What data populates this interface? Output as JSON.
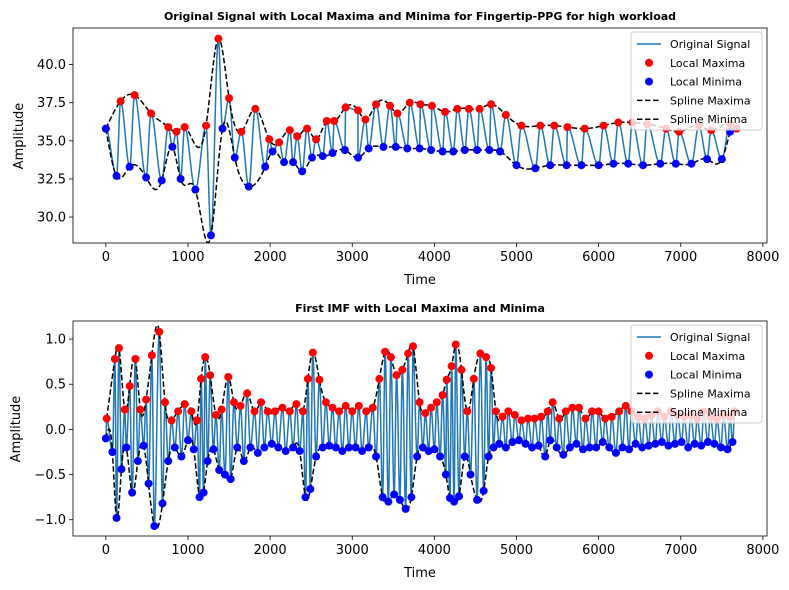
{
  "colors": {
    "signal": "#1f77b4",
    "maxima": "#ff0000",
    "minima": "#0000ff",
    "spline": "#000000"
  },
  "chart_data": [
    {
      "type": "line",
      "title": "Original Signal with Local Maxima and Minima for Fingertip-PPG for high workload",
      "xlabel": "Time",
      "ylabel": "Amplitude",
      "xlim": [
        -400,
        8050
      ],
      "ylim": [
        28.3,
        42.4
      ],
      "xticks": [
        0,
        1000,
        2000,
        3000,
        4000,
        5000,
        6000,
        7000,
        8000
      ],
      "xtick_labels": [
        "0",
        "1000",
        "2000",
        "3000",
        "4000",
        "5000",
        "6000",
        "7000",
        "8000"
      ],
      "yticks": [
        30.0,
        32.5,
        35.0,
        37.5,
        40.0
      ],
      "ytick_labels": [
        "30.0",
        "32.5",
        "35.0",
        "37.5",
        "40.0"
      ],
      "legend": {
        "position": "upper right",
        "entries": [
          "Original Signal",
          "Local Maxima",
          "Local Minima",
          "Spline Maxima",
          "Spline Minima"
        ]
      },
      "maxima": {
        "x": [
          0,
          180,
          350,
          550,
          760,
          860,
          960,
          1220,
          1370,
          1500,
          1650,
          1820,
          1990,
          2110,
          2240,
          2330,
          2450,
          2560,
          2690,
          2780,
          2920,
          3070,
          3160,
          3290,
          3460,
          3550,
          3700,
          3830,
          3970,
          4130,
          4280,
          4420,
          4550,
          4690,
          4870,
          5060,
          5290,
          5460,
          5620,
          5830,
          6060,
          6240,
          6410,
          6590,
          6820,
          6980,
          7220,
          7370,
          7600,
          7680
        ],
        "y": [
          35.8,
          37.6,
          38.0,
          36.8,
          35.9,
          35.6,
          35.9,
          36.0,
          41.7,
          37.8,
          35.6,
          37.1,
          35.1,
          34.9,
          35.7,
          35.3,
          35.8,
          35.1,
          36.3,
          36.3,
          37.2,
          37.0,
          36.4,
          37.4,
          37.3,
          36.8,
          37.5,
          37.4,
          37.3,
          36.9,
          37.1,
          37.1,
          37.1,
          37.4,
          36.7,
          36.0,
          36.0,
          36.0,
          35.9,
          35.8,
          36.0,
          36.2,
          36.2,
          36.1,
          35.8,
          35.6,
          36.0,
          35.7,
          36.1,
          35.8
        ]
      },
      "minima": {
        "x": [
          0,
          130,
          290,
          490,
          680,
          810,
          910,
          1090,
          1280,
          1420,
          1570,
          1740,
          1940,
          2030,
          2170,
          2280,
          2390,
          2510,
          2640,
          2760,
          2910,
          3070,
          3200,
          3380,
          3530,
          3670,
          3820,
          3960,
          4100,
          4230,
          4370,
          4520,
          4670,
          4800,
          5000,
          5230,
          5410,
          5610,
          5790,
          6000,
          6180,
          6360,
          6540,
          6750,
          6940,
          7130,
          7320,
          7500,
          7600
        ],
        "y": [
          35.8,
          32.7,
          33.3,
          32.6,
          32.4,
          34.6,
          32.5,
          31.8,
          28.8,
          35.8,
          33.9,
          32.0,
          33.3,
          34.3,
          33.6,
          33.6,
          33.0,
          33.9,
          34.0,
          34.2,
          34.4,
          33.9,
          34.5,
          34.6,
          34.6,
          34.5,
          34.5,
          34.4,
          34.3,
          34.3,
          34.4,
          34.4,
          34.4,
          34.3,
          33.4,
          33.2,
          33.4,
          33.4,
          33.4,
          33.4,
          33.5,
          33.5,
          33.4,
          33.5,
          33.5,
          33.5,
          33.8,
          33.8,
          35.6
        ]
      }
    },
    {
      "type": "line",
      "title": "First IMF with Local Maxima and Minima",
      "xlabel": "Time",
      "ylabel": "Amplitude",
      "xlim": [
        -400,
        8050
      ],
      "ylim": [
        -1.18,
        1.2
      ],
      "xticks": [
        0,
        1000,
        2000,
        3000,
        4000,
        5000,
        6000,
        7000,
        8000
      ],
      "xtick_labels": [
        "0",
        "1000",
        "2000",
        "3000",
        "4000",
        "5000",
        "6000",
        "7000",
        "8000"
      ],
      "yticks": [
        -1.0,
        -0.5,
        0.0,
        0.5,
        1.0
      ],
      "ytick_labels": [
        "−1.0",
        "−0.5",
        "0.0",
        "0.5",
        "1.0"
      ],
      "legend": {
        "position": "upper right",
        "entries": [
          "Original Signal",
          "Local Maxima",
          "Local Minima",
          "Spline Maxima",
          "Spline Minima"
        ]
      },
      "maxima": {
        "x": [
          10,
          110,
          160,
          230,
          290,
          360,
          420,
          490,
          560,
          650,
          720,
          800,
          880,
          960,
          1040,
          1110,
          1160,
          1210,
          1270,
          1340,
          1410,
          1490,
          1560,
          1640,
          1720,
          1810,
          1890,
          1970,
          2060,
          2150,
          2240,
          2320,
          2400,
          2460,
          2520,
          2600,
          2680,
          2760,
          2840,
          2920,
          3000,
          3080,
          3170,
          3250,
          3330,
          3400,
          3470,
          3540,
          3610,
          3680,
          3740,
          3820,
          3890,
          3960,
          4030,
          4100,
          4150,
          4210,
          4260,
          4330,
          4400,
          4480,
          4560,
          4630,
          4690,
          4750,
          4830,
          4900,
          4980,
          5060,
          5140,
          5220,
          5300,
          5380,
          5440,
          5520,
          5600,
          5680,
          5760,
          5840,
          5920,
          6000,
          6080,
          6160,
          6250,
          6330,
          6400,
          6480,
          6560,
          6640,
          6720,
          6800,
          6880,
          6960,
          7040,
          7120,
          7200,
          7280,
          7360,
          7440,
          7520,
          7600,
          7660
        ],
        "y": [
          0.12,
          0.78,
          0.9,
          0.22,
          0.48,
          0.78,
          0.22,
          0.33,
          0.82,
          1.08,
          0.3,
          0.1,
          0.2,
          0.28,
          0.2,
          0.1,
          0.56,
          0.8,
          0.6,
          0.16,
          0.22,
          0.58,
          0.3,
          0.26,
          0.4,
          0.2,
          0.3,
          0.2,
          0.2,
          0.24,
          0.2,
          0.28,
          0.2,
          0.56,
          0.85,
          0.55,
          0.3,
          0.24,
          0.2,
          0.26,
          0.2,
          0.26,
          0.2,
          0.24,
          0.56,
          0.86,
          0.8,
          0.6,
          0.66,
          0.84,
          0.92,
          0.3,
          0.18,
          0.24,
          0.3,
          0.38,
          0.55,
          0.7,
          0.94,
          0.66,
          0.2,
          0.56,
          0.84,
          0.8,
          0.68,
          0.2,
          0.14,
          0.2,
          0.16,
          0.1,
          0.12,
          0.12,
          0.14,
          0.2,
          0.3,
          0.12,
          0.2,
          0.24,
          0.24,
          0.12,
          0.2,
          0.2,
          0.12,
          0.14,
          0.2,
          0.26,
          0.2,
          0.14,
          0.12,
          0.16,
          0.2,
          0.14,
          0.2,
          0.16,
          0.14,
          0.16,
          0.12,
          0.2,
          0.14,
          0.12,
          0.16,
          0.14,
          0.2
        ]
      },
      "minima": {
        "x": [
          0,
          80,
          130,
          190,
          250,
          320,
          390,
          460,
          520,
          590,
          690,
          760,
          840,
          920,
          1000,
          1070,
          1140,
          1190,
          1240,
          1310,
          1380,
          1450,
          1520,
          1600,
          1680,
          1760,
          1850,
          1930,
          2020,
          2100,
          2190,
          2280,
          2360,
          2430,
          2490,
          2560,
          2640,
          2720,
          2800,
          2880,
          2960,
          3040,
          3120,
          3200,
          3290,
          3370,
          3440,
          3510,
          3580,
          3650,
          3720,
          3790,
          3860,
          3930,
          4000,
          4070,
          4140,
          4190,
          4240,
          4300,
          4370,
          4440,
          4520,
          4600,
          4660,
          4720,
          4790,
          4870,
          4950,
          5030,
          5110,
          5190,
          5270,
          5350,
          5410,
          5490,
          5570,
          5650,
          5730,
          5810,
          5890,
          5970,
          6050,
          6130,
          6210,
          6290,
          6370,
          6450,
          6530,
          6610,
          6690,
          6770,
          6850,
          6930,
          7010,
          7090,
          7170,
          7250,
          7330,
          7410,
          7490,
          7570,
          7630
        ],
        "y": [
          -0.1,
          -0.25,
          -0.98,
          -0.44,
          -0.2,
          -0.7,
          -0.35,
          -0.18,
          -0.6,
          -1.07,
          -0.82,
          -0.35,
          -0.2,
          -0.3,
          -0.12,
          -0.22,
          -0.75,
          -0.7,
          -0.35,
          -0.22,
          -0.45,
          -0.5,
          -0.55,
          -0.2,
          -0.35,
          -0.2,
          -0.26,
          -0.2,
          -0.16,
          -0.2,
          -0.24,
          -0.2,
          -0.24,
          -0.75,
          -0.66,
          -0.3,
          -0.2,
          -0.18,
          -0.2,
          -0.24,
          -0.2,
          -0.2,
          -0.24,
          -0.2,
          -0.3,
          -0.75,
          -0.8,
          -0.72,
          -0.78,
          -0.88,
          -0.75,
          -0.3,
          -0.2,
          -0.24,
          -0.22,
          -0.3,
          -0.5,
          -0.76,
          -0.8,
          -0.74,
          -0.3,
          -0.5,
          -0.78,
          -0.68,
          -0.3,
          -0.2,
          -0.16,
          -0.2,
          -0.14,
          -0.12,
          -0.16,
          -0.2,
          -0.18,
          -0.3,
          -0.12,
          -0.2,
          -0.28,
          -0.2,
          -0.16,
          -0.22,
          -0.2,
          -0.2,
          -0.14,
          -0.2,
          -0.26,
          -0.2,
          -0.22,
          -0.16,
          -0.2,
          -0.18,
          -0.16,
          -0.14,
          -0.18,
          -0.16,
          -0.14,
          -0.2,
          -0.16,
          -0.18,
          -0.14,
          -0.16,
          -0.2,
          -0.22,
          -0.14
        ]
      }
    }
  ]
}
